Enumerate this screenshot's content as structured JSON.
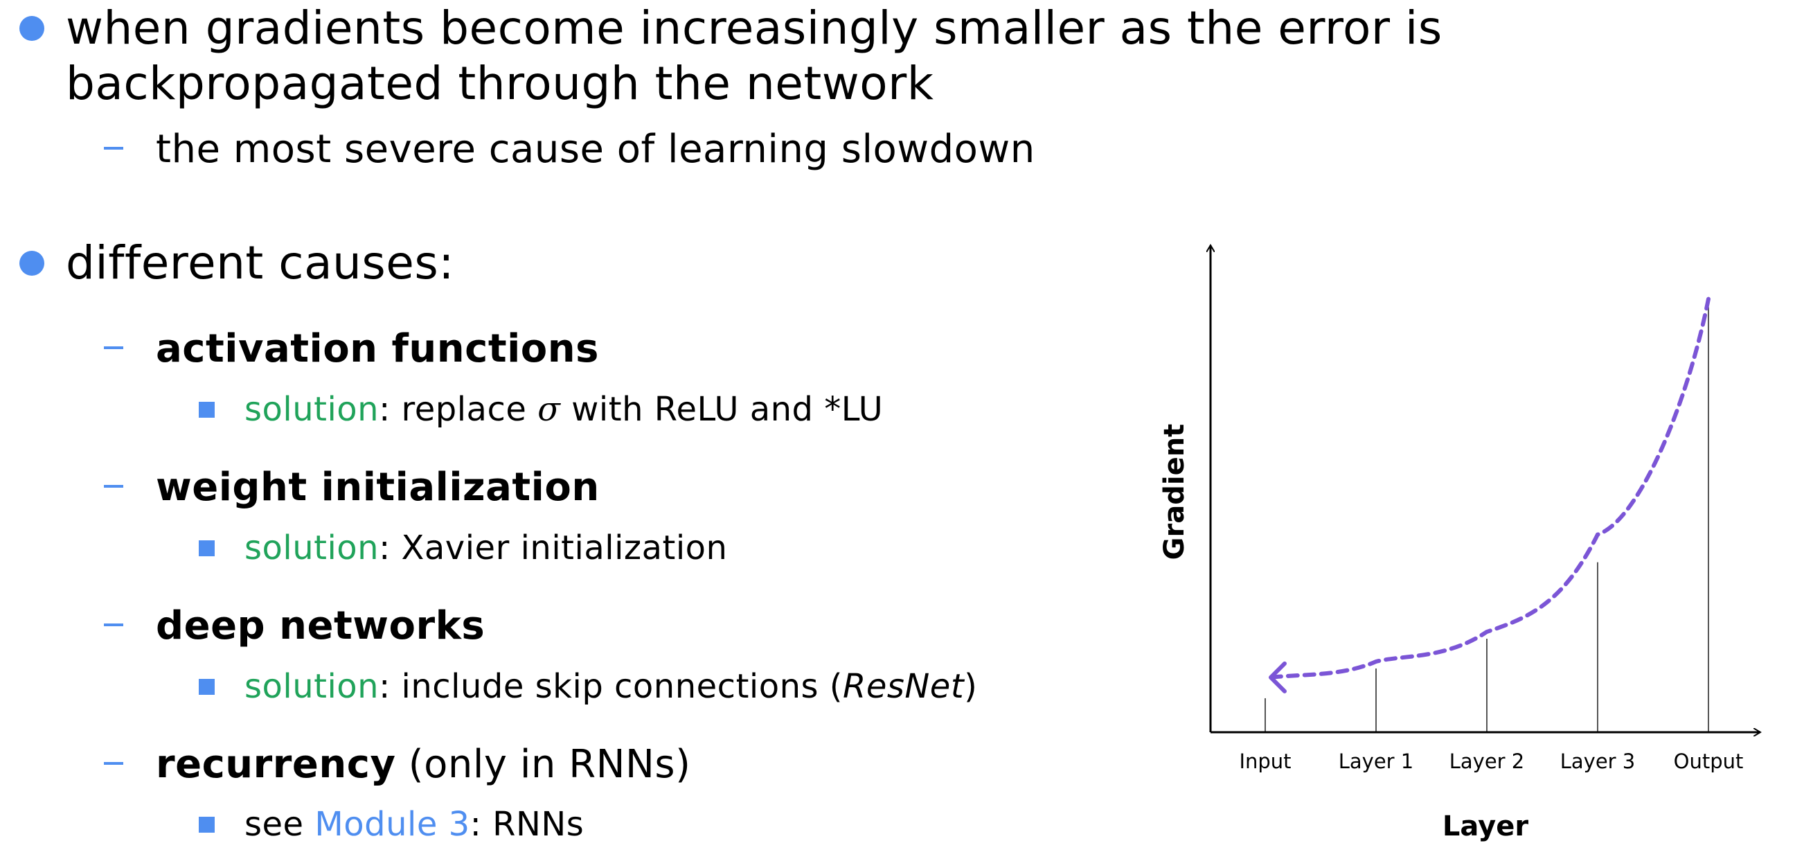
{
  "bullets": {
    "b1": {
      "line1": "when gradients become increasingly smaller as the error is",
      "line2": "backpropagated through the network",
      "sub": "the most severe cause of learning slowdown"
    },
    "b2": {
      "text": "different causes:",
      "items": [
        {
          "bold": "activation functions",
          "rest": "",
          "solution_label": "solution",
          "solution_text_a": ": replace ",
          "symbol": "σ",
          "solution_text_b": " with ReLU and *LU"
        },
        {
          "bold": "weight initialization",
          "rest": "",
          "solution_label": "solution",
          "solution_text": ": Xavier initialization"
        },
        {
          "bold": "deep networks",
          "rest": "",
          "solution_label": "solution",
          "solution_text_a": ": include skip connections (",
          "solution_italic": "ResNet",
          "solution_text_b": ")"
        },
        {
          "bold": "recurrency",
          "rest": " (only in RNNs)",
          "see_text": "see ",
          "link_text": "Module 3",
          "see_rest": ": RNNs"
        }
      ]
    }
  },
  "colors": {
    "bullet": "#4f8ef0",
    "solution": "#20a35a",
    "link": "#4f8ef0",
    "curve": "#7b55d6"
  },
  "chart_data": {
    "type": "bar",
    "categories": [
      "Input",
      "Layer 1",
      "Layer 2",
      "Layer 3",
      "Output"
    ],
    "values": [
      8,
      15,
      22,
      40,
      100
    ],
    "xlabel": "Layer",
    "ylabel": "Gradient",
    "ylim": [
      0,
      112
    ],
    "grid": false,
    "annotation": "dashed arrow from Output back to Input (gradient shrinking)"
  }
}
